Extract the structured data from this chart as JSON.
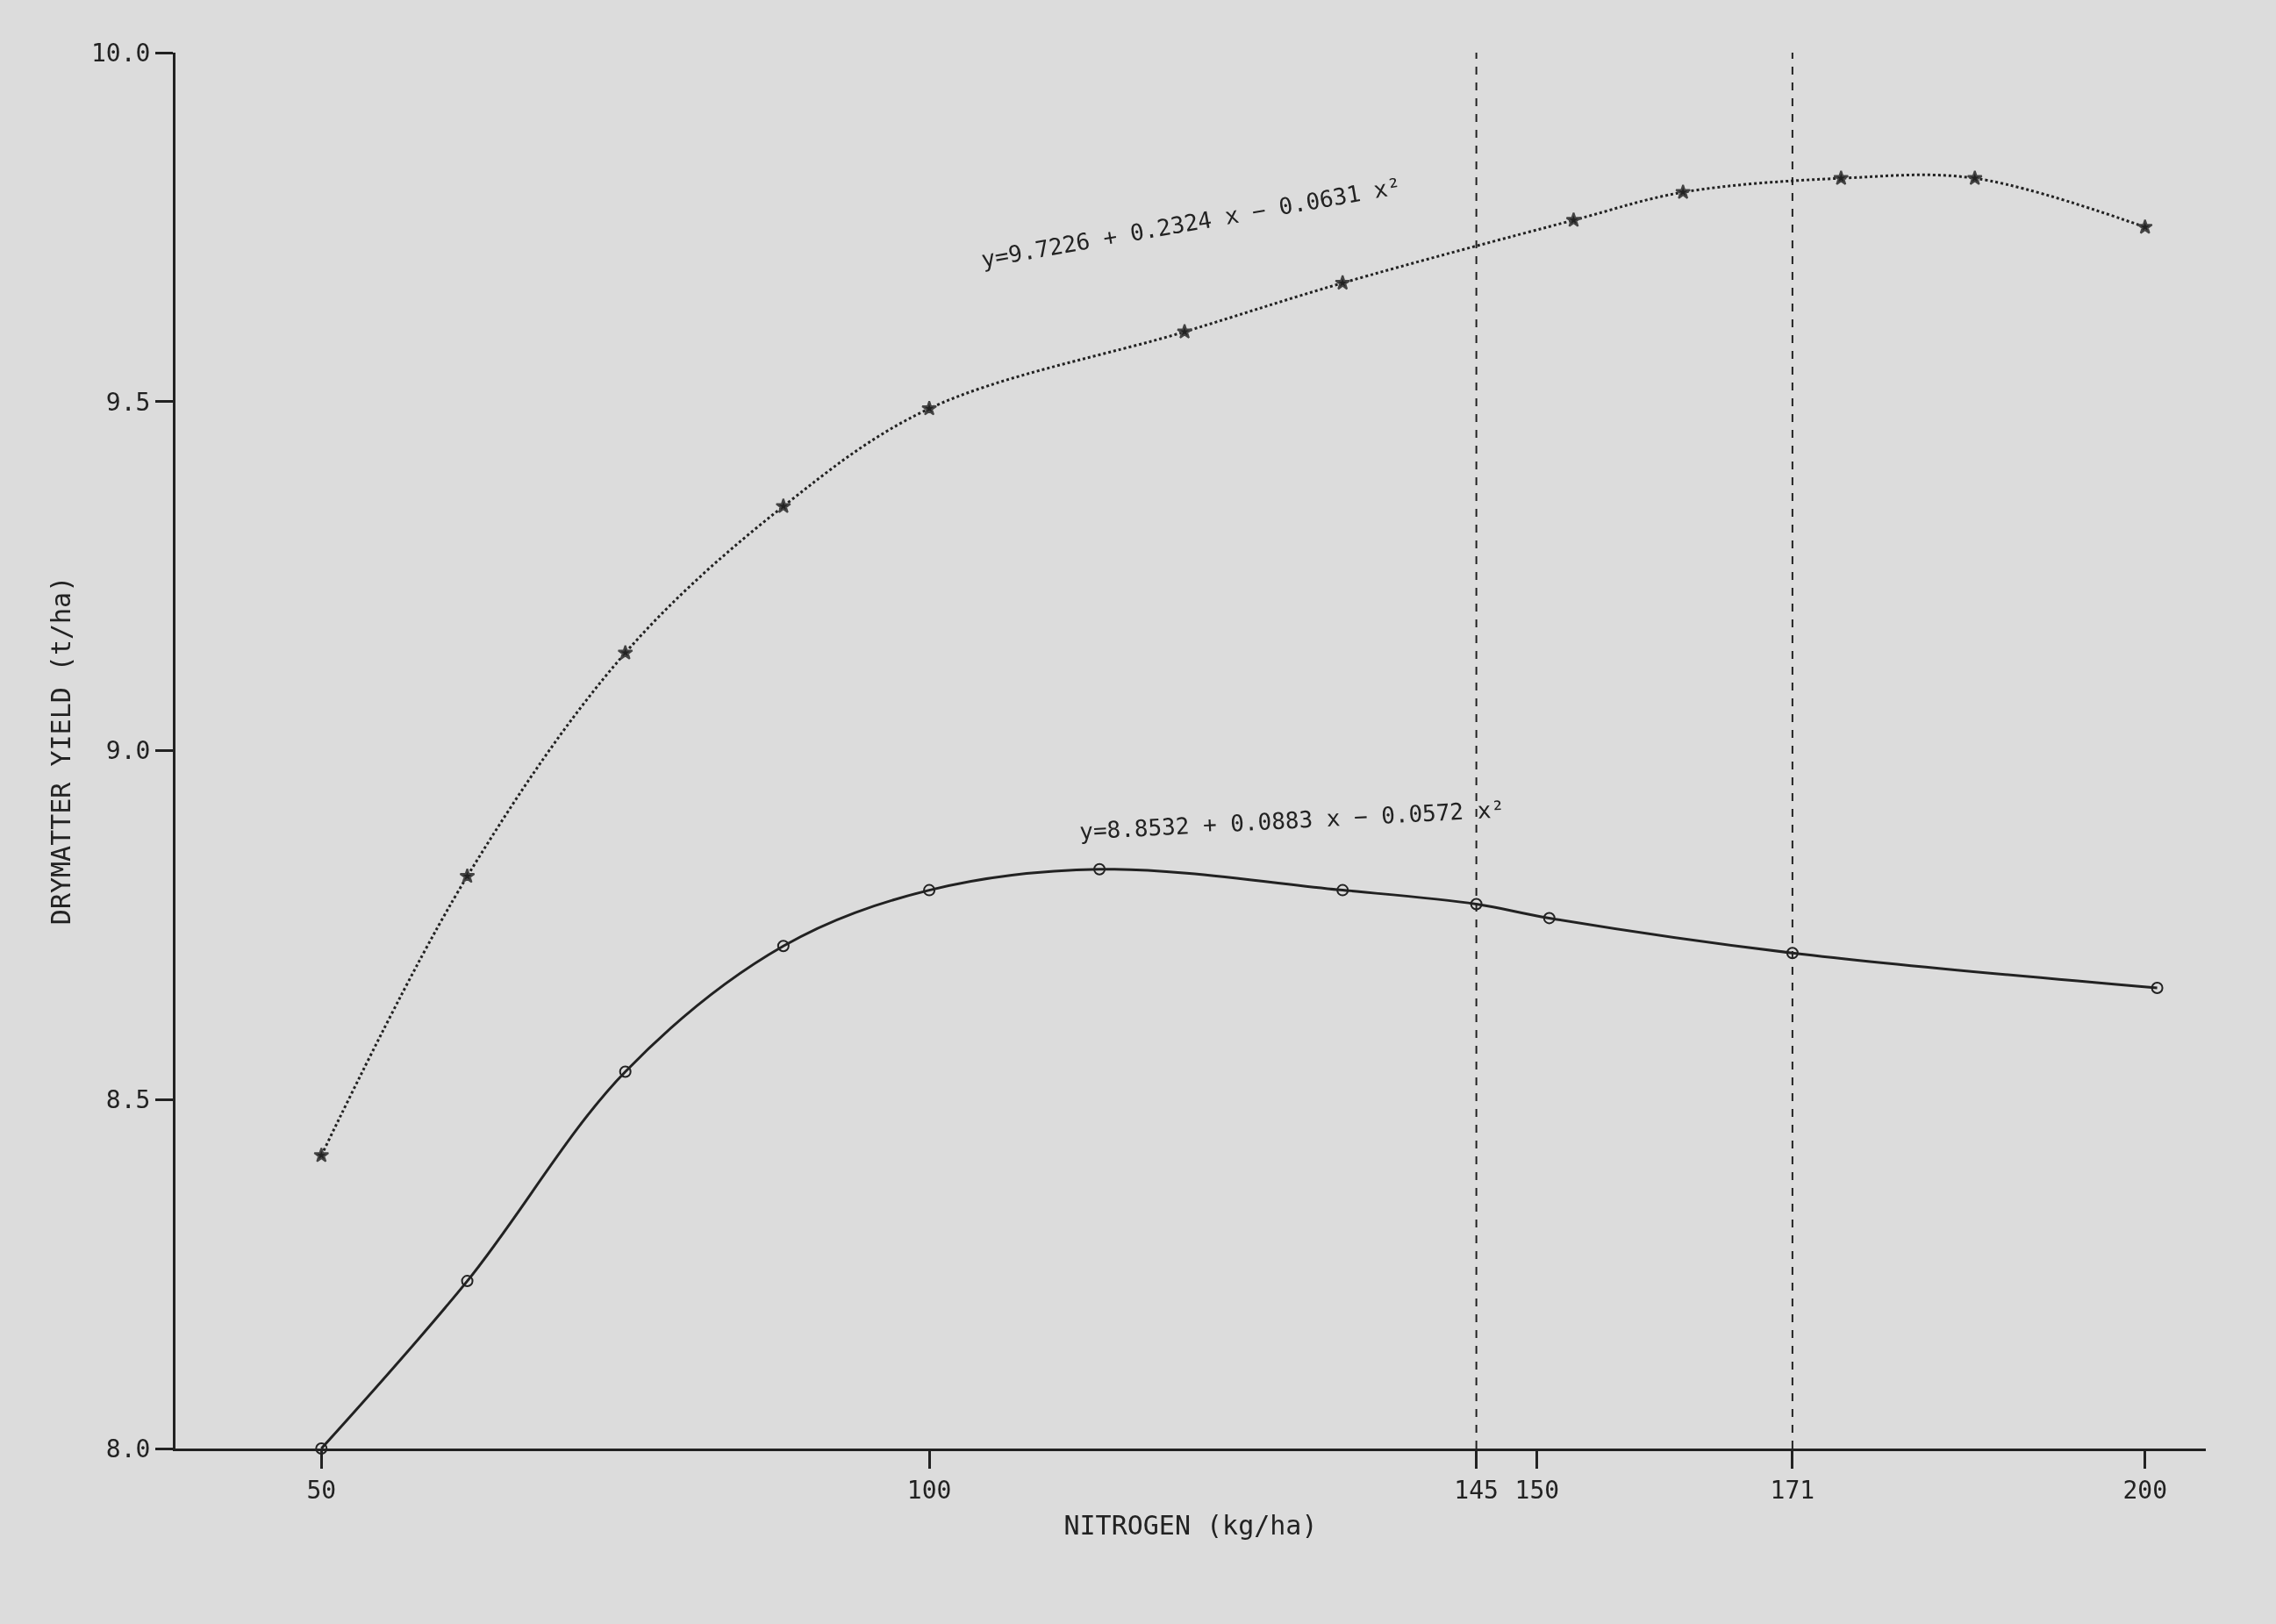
{
  "chart_data": {
    "type": "line",
    "xlabel": "NITROGEN (kg/ha)",
    "ylabel": "DRYMATTER YIELD (t/ha)",
    "xlim": [
      38,
      205
    ],
    "ylim": [
      8,
      10
    ],
    "xticks": [
      50,
      100,
      145,
      150,
      171,
      200
    ],
    "yticks": [
      {
        "value": 8,
        "label": "8.0"
      },
      {
        "value": 8.5,
        "label": "8.5"
      },
      {
        "value": 9,
        "label": "9.0"
      },
      {
        "value": 9.5,
        "label": "9.5"
      },
      {
        "value": 10,
        "label": "10.0"
      }
    ],
    "grid": false,
    "series": [
      {
        "color": "#222222",
        "line_style": "dotted",
        "marker": "star",
        "x": [
          50,
          62,
          75,
          88,
          100,
          121,
          134,
          153,
          162,
          175,
          186,
          200
        ],
        "values": [
          8.42,
          8.82,
          9.14,
          9.35,
          9.49,
          9.6,
          9.67,
          9.76,
          9.8,
          9.82,
          9.82,
          9.75
        ]
      },
      {
        "color": "#222222",
        "line_style": "solid",
        "marker": "circle",
        "x": [
          50,
          62,
          75,
          88,
          100,
          114,
          134,
          145,
          151,
          171,
          201
        ],
        "values": [
          8.0,
          8.24,
          8.54,
          8.72,
          8.8,
          8.83,
          8.8,
          8.78,
          8.76,
          8.71,
          8.66
        ]
      }
    ],
    "ref_lines": [
      {
        "axis": "x",
        "value": 145,
        "line_style": "dashed",
        "color": "#222222"
      },
      {
        "axis": "x",
        "value": 171,
        "line_style": "dashed",
        "color": "#222222"
      }
    ],
    "annotations": [
      "y=9.7226 + 0.2324 x − 0.0631 x²",
      "y=8.8532 + 0.0883 x − 0.0572 x²"
    ]
  }
}
